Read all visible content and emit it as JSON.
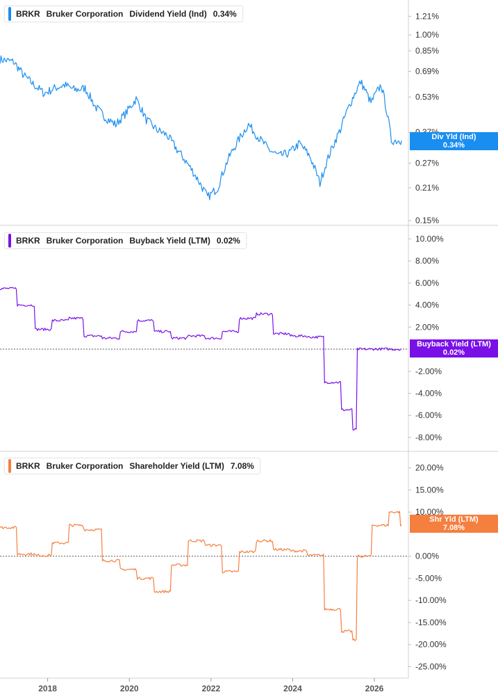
{
  "chart_data": [
    {
      "type": "line",
      "ticker": "BRKR",
      "company": "Bruker Corporation",
      "metric": "Dividend Yield (Ind)",
      "current_value": "0.34%",
      "tag_label": "Div Yld (Ind)",
      "tag_value": "0.34%",
      "color": "#1a8ef0",
      "y_scale": "log",
      "ylim": [
        0.145,
        1.35
      ],
      "yticks": [
        1.21,
        1.0,
        0.85,
        0.69,
        0.53,
        0.37,
        0.27,
        0.21,
        0.15
      ],
      "ytick_labels": [
        "1.21%",
        "1.00%",
        "0.85%",
        "0.69%",
        "0.53%",
        "0.37%",
        "0.27%",
        "0.21%",
        "0.15%"
      ],
      "x": [
        "2016-11",
        "2017-03",
        "2017-06",
        "2017-09",
        "2017-12",
        "2018-03",
        "2018-06",
        "2018-09",
        "2018-12",
        "2019-03",
        "2019-06",
        "2019-09",
        "2019-12",
        "2020-03",
        "2020-06",
        "2020-09",
        "2020-12",
        "2021-03",
        "2021-06",
        "2021-09",
        "2021-12",
        "2022-03",
        "2022-06",
        "2022-09",
        "2022-12",
        "2023-03",
        "2023-06",
        "2023-09",
        "2023-12",
        "2024-03",
        "2024-06",
        "2024-09",
        "2024-12",
        "2025-03",
        "2025-06",
        "2025-09",
        "2025-12",
        "2026-03",
        "2026-06",
        "2026-09"
      ],
      "values": [
        0.78,
        0.76,
        0.66,
        0.6,
        0.55,
        0.58,
        0.6,
        0.57,
        0.58,
        0.48,
        0.43,
        0.4,
        0.45,
        0.52,
        0.42,
        0.38,
        0.36,
        0.31,
        0.27,
        0.23,
        0.19,
        0.21,
        0.28,
        0.34,
        0.4,
        0.35,
        0.31,
        0.29,
        0.3,
        0.33,
        0.29,
        0.22,
        0.3,
        0.38,
        0.5,
        0.62,
        0.5,
        0.6,
        0.34,
        0.34
      ]
    },
    {
      "type": "line",
      "ticker": "BRKR",
      "company": "Bruker Corporation",
      "metric": "Buyback Yield (LTM)",
      "current_value": "0.02%",
      "tag_label": "Buyback Yield (LTM)",
      "tag_value": "0.02%",
      "color": "#7a10e8",
      "ylim": [
        -8.7,
        10.6
      ],
      "yticks": [
        10,
        8,
        6,
        4,
        2,
        0,
        -2,
        -4,
        -6,
        -8
      ],
      "ytick_labels": [
        "10.00%",
        "8.00%",
        "6.00%",
        "4.00%",
        "2.00%",
        "",
        "-2.00%",
        "-4.00%",
        "-6.00%",
        "-8.00%"
      ],
      "x": [
        "2016-11",
        "2017-05",
        "2017-10",
        "2018-03",
        "2018-08",
        "2018-12",
        "2019-06",
        "2019-11",
        "2020-04",
        "2020-09",
        "2021-02",
        "2021-07",
        "2021-12",
        "2022-05",
        "2022-10",
        "2023-03",
        "2023-08",
        "2024-01",
        "2024-06",
        "2024-11",
        "2025-04",
        "2025-07",
        "2025-08",
        "2026-01",
        "2026-06",
        "2026-09"
      ],
      "values": [
        5.5,
        4.0,
        1.8,
        2.6,
        2.8,
        1.2,
        1.0,
        1.6,
        2.6,
        1.6,
        1.0,
        1.2,
        1.0,
        1.6,
        2.8,
        3.2,
        1.4,
        1.2,
        1.1,
        -3.0,
        -5.5,
        -7.3,
        0.0,
        0.02,
        0.0,
        0.02
      ]
    },
    {
      "type": "line",
      "ticker": "BRKR",
      "company": "Bruker Corporation",
      "metric": "Shareholder Yield (LTM)",
      "current_value": "7.08%",
      "tag_label": "Shr Yld (LTM)",
      "tag_value": "7.08%",
      "color": "#f57f3f",
      "ylim": [
        -26.5,
        22.0
      ],
      "yticks": [
        20,
        15,
        10,
        5,
        0,
        -5,
        -10,
        -15,
        -20,
        -25
      ],
      "ytick_labels": [
        "20.00%",
        "15.00%",
        "10.00%",
        "",
        "0.00%",
        "-5.00%",
        "-10.00%",
        "-15.00%",
        "-20.00%",
        "-25.00%"
      ],
      "x": [
        "2016-11",
        "2017-05",
        "2017-10",
        "2018-03",
        "2018-08",
        "2018-12",
        "2019-06",
        "2019-11",
        "2020-04",
        "2020-09",
        "2021-02",
        "2021-07",
        "2021-12",
        "2022-05",
        "2022-10",
        "2023-03",
        "2023-08",
        "2024-01",
        "2024-06",
        "2024-11",
        "2025-04",
        "2025-07",
        "2025-08",
        "2026-01",
        "2026-06",
        "2026-09"
      ],
      "values": [
        6.5,
        0.5,
        0.2,
        3.0,
        7.0,
        6.0,
        -1.0,
        -3.0,
        -5.0,
        -8.0,
        -2.0,
        3.5,
        2.5,
        -3.5,
        1.0,
        3.5,
        1.5,
        1.2,
        0.2,
        -12.0,
        -17.0,
        -19.0,
        0.0,
        7.0,
        10.0,
        7.08
      ]
    }
  ],
  "x_axis": {
    "tick_labels": [
      "2018",
      "2020",
      "2022",
      "2024",
      "2026"
    ],
    "tick_dates": [
      "2018-01",
      "2020-01",
      "2022-01",
      "2024-01",
      "2026-01"
    ],
    "start": "2016-11",
    "end": "2026-11"
  }
}
